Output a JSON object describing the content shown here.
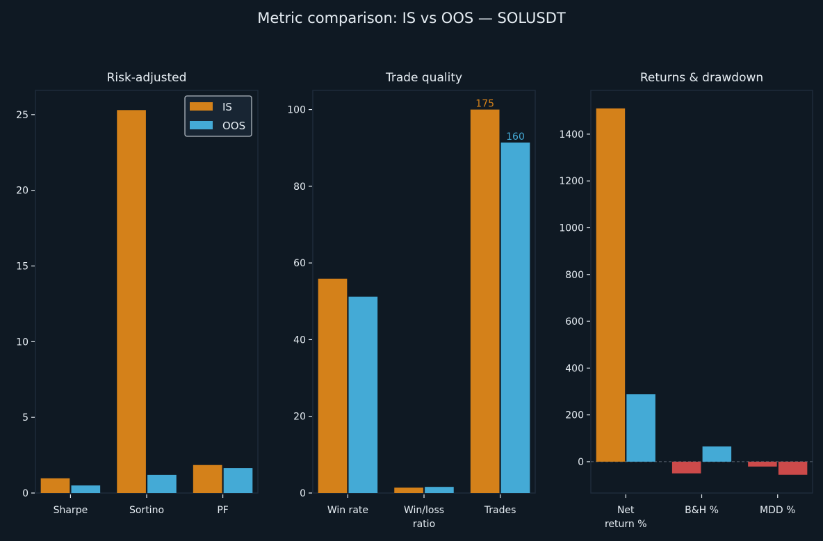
{
  "colors": {
    "background": "#0f1923",
    "axes_frame": "#1e2b3a",
    "text": "#e6edf3",
    "is": "#d4811a",
    "oos": "#44aad6",
    "negative": "#cc4a4a",
    "zero_line": "#5a6673",
    "legend_bg": "#182533",
    "legend_border": "#b0b8c0"
  },
  "chart_data": {
    "suptitle": "Metric comparison: IS vs OOS — SOLUSDT",
    "legend": {
      "entries": [
        "IS",
        "OOS"
      ],
      "placement": "top-right of first panel"
    },
    "panels": [
      {
        "type": "bar",
        "title": "Risk-adjusted",
        "categories": [
          "Sharpe",
          "Sortino",
          "PF"
        ],
        "series": [
          {
            "name": "IS",
            "values": [
              0.97,
              25.3,
              1.85
            ]
          },
          {
            "name": "OOS",
            "values": [
              0.5,
              1.2,
              1.65
            ]
          }
        ],
        "ylim": [
          0,
          26.6
        ],
        "yticks": [
          0,
          5,
          10,
          15,
          20,
          25
        ],
        "ytick_labels": [
          "0",
          "5",
          "10",
          "15",
          "20",
          "25"
        ],
        "zero_line": false,
        "show_legend": true
      },
      {
        "type": "bar",
        "title": "Trade quality",
        "categories": [
          "Win rate",
          "Win/loss\nratio",
          "Trades"
        ],
        "series": [
          {
            "name": "IS",
            "values": [
              55.9,
              1.4,
              100
            ]
          },
          {
            "name": "OOS",
            "values": [
              51.2,
              1.6,
              91.4
            ]
          }
        ],
        "bar_labels": [
          {
            "category": 2,
            "series": 0,
            "text": "175"
          },
          {
            "category": 2,
            "series": 1,
            "text": "160"
          }
        ],
        "ylim": [
          0,
          105
        ],
        "yticks": [
          0,
          20,
          40,
          60,
          80,
          100
        ],
        "ytick_labels": [
          "0",
          "20",
          "40",
          "60",
          "80",
          "100"
        ],
        "zero_line": false,
        "show_legend": false
      },
      {
        "type": "bar",
        "title": "Returns & drawdown",
        "categories": [
          "Net\nreturn %",
          "B&H %",
          "MDD %"
        ],
        "series": [
          {
            "name": "IS",
            "values": [
              1510,
              -50,
              -21
            ]
          },
          {
            "name": "OOS",
            "values": [
              288,
              65,
              -56
            ]
          }
        ],
        "ylim": [
          -134,
          1587
        ],
        "yticks": [
          0,
          200,
          400,
          600,
          800,
          1000,
          1200,
          1400
        ],
        "ytick_labels": [
          "0",
          "200",
          "400",
          "600",
          "800",
          "1000",
          "1200",
          "1400"
        ],
        "zero_line": true,
        "negative_colored": true,
        "show_legend": false
      }
    ]
  }
}
